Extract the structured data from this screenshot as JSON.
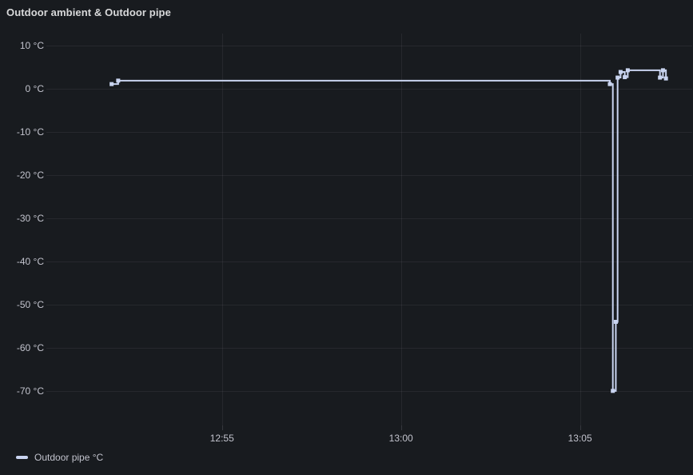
{
  "panel": {
    "title": "Outdoor ambient & Outdoor pipe",
    "background_color": "#181b1f"
  },
  "legend": {
    "items": [
      {
        "label": "Outdoor pipe °C",
        "color": "#c9d4f0"
      }
    ]
  },
  "chart_data": {
    "type": "line",
    "title": "Outdoor ambient & Outdoor pipe",
    "unit": "°C",
    "interpolation": "step-after",
    "grid": true,
    "legend_position": "bottom-left",
    "colors": {
      "grid": "rgba(204,204,220,0.08)",
      "tick": "rgba(204,204,220,0.16)",
      "series": "#c9d4f0"
    },
    "xlim": [
      "12:50:11",
      "13:08:08"
    ],
    "ylim": [
      -78,
      12.8
    ],
    "x_ticks": [
      {
        "label": "12:55",
        "t": "12:55:00"
      },
      {
        "label": "13:00",
        "t": "13:00:00"
      },
      {
        "label": "13:05",
        "t": "13:05:00"
      }
    ],
    "y_ticks": [
      {
        "label": "10 °C",
        "v": 10
      },
      {
        "label": "0 °C",
        "v": 0
      },
      {
        "label": "-10 °C",
        "v": -10
      },
      {
        "label": "-20 °C",
        "v": -20
      },
      {
        "label": "-30 °C",
        "v": -30
      },
      {
        "label": "-40 °C",
        "v": -40
      },
      {
        "label": "-50 °C",
        "v": -50
      },
      {
        "label": "-60 °C",
        "v": -60
      },
      {
        "label": "-70 °C",
        "v": -70
      }
    ],
    "series": [
      {
        "name": "Outdoor pipe °C",
        "color": "#c9d4f0",
        "points": [
          {
            "t": "12:51:55",
            "v": 1.1
          },
          {
            "t": "12:52:06",
            "v": 1.9
          },
          {
            "t": "13:05:50",
            "v": 1.1
          },
          {
            "t": "13:05:55",
            "v": -70
          },
          {
            "t": "13:06:00",
            "v": -54
          },
          {
            "t": "13:06:03",
            "v": 2.6
          },
          {
            "t": "13:06:08",
            "v": 3.9
          },
          {
            "t": "13:06:15",
            "v": 2.7
          },
          {
            "t": "13:06:20",
            "v": 4.3
          },
          {
            "t": "13:07:14",
            "v": 2.6
          },
          {
            "t": "13:07:19",
            "v": 4.3
          },
          {
            "t": "13:07:24",
            "v": 2.4
          }
        ]
      }
    ]
  }
}
